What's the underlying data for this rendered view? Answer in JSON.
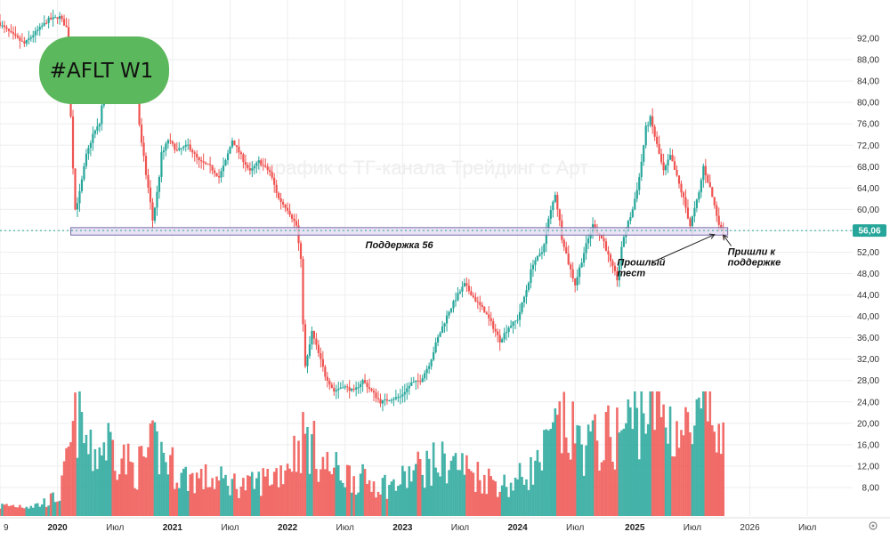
{
  "chart_data": {
    "type": "candlestick",
    "ticker_label": "#AFLT W1",
    "watermark": "Я график с ТГ-канала Трейдинг с Арт",
    "colors": {
      "up": "#26a69a",
      "down": "#ef5350",
      "ticker_badge": "#5cb85c",
      "support_zone_fill": "#e3d9f2",
      "support_zone_stroke": "#7b6ea8",
      "price_label_bg": "#26a69a",
      "grid": "#eeeeee"
    },
    "grid": true,
    "y_axis": {
      "position": "right",
      "ylim": [
        5.0,
        96.0
      ],
      "ticks": [
        8,
        12,
        16,
        20,
        24,
        28,
        32,
        36,
        40,
        44,
        48,
        52,
        56,
        60,
        64,
        68,
        72,
        76,
        80,
        84,
        88,
        92
      ],
      "tick_labels": [
        "8,00",
        "12,00",
        "16,00",
        "20,00",
        "24,00",
        "28,00",
        "32,00",
        "36,00",
        "40,00",
        "44,00",
        "48,00",
        "52,00",
        "56,00",
        "60,00",
        "64,00",
        "68,00",
        "72,00",
        "76,00",
        "80,00",
        "84,00",
        "88,00",
        "92,00"
      ]
    },
    "x_axis": {
      "xlim": [
        "2019-07-08",
        "2026-09-14"
      ],
      "ticks": [
        {
          "date": "2019-07-08",
          "label": "9",
          "bold": false
        },
        {
          "date": "2020-01-06",
          "label": "2020",
          "bold": true
        },
        {
          "date": "2020-07-06",
          "label": "Июл",
          "bold": false
        },
        {
          "date": "2021-01-04",
          "label": "2021",
          "bold": true
        },
        {
          "date": "2021-07-05",
          "label": "Июл",
          "bold": false
        },
        {
          "date": "2022-01-03",
          "label": "2022",
          "bold": true
        },
        {
          "date": "2022-07-04",
          "label": "Июл",
          "bold": false
        },
        {
          "date": "2023-01-02",
          "label": "2023",
          "bold": true
        },
        {
          "date": "2023-07-03",
          "label": "Июл",
          "bold": false
        },
        {
          "date": "2024-01-01",
          "label": "2024",
          "bold": true
        },
        {
          "date": "2024-07-01",
          "label": "Июл",
          "bold": false
        },
        {
          "date": "2025-01-06",
          "label": "2025",
          "bold": true
        },
        {
          "date": "2025-07-07",
          "label": "Июл",
          "bold": false
        },
        {
          "date": "2026-01-05",
          "label": "2026",
          "bold": false
        },
        {
          "date": "2026-07-06",
          "label": "Июл",
          "bold": false
        }
      ]
    },
    "last_price": {
      "value": 56.06,
      "label": "56,06"
    },
    "support_zone": {
      "from": 55.2,
      "to": 56.6,
      "start": "2020-02-17",
      "end": "2025-10-27",
      "label": "Поддержка 56"
    },
    "annotations": [
      {
        "id": "prev-test",
        "lines": [
          "Прошлый",
          "тест"
        ],
        "text_date": "2024-11-11",
        "text_price": 49.5,
        "arrow_to_date": "2025-09-15",
        "arrow_to_price": 55.3
      },
      {
        "id": "came-to-support",
        "lines": [
          "Пришли к",
          "поддержке"
        ],
        "text_date": "2025-10-27",
        "text_price": 51.5,
        "arrow_to_date": "2025-10-13",
        "arrow_to_price": 55.2
      }
    ],
    "price_keypoints": [
      [
        "2019-07-08",
        95.0
      ],
      [
        "2019-08-26",
        92.5
      ],
      [
        "2019-09-30",
        91.0
      ],
      [
        "2019-11-11",
        93.5
      ],
      [
        "2019-12-16",
        95.5
      ],
      [
        "2020-01-20",
        96.0
      ],
      [
        "2020-02-10",
        94.0
      ],
      [
        "2020-02-24",
        78.0
      ],
      [
        "2020-03-09",
        60.0
      ],
      [
        "2020-03-23",
        63.0
      ],
      [
        "2020-04-13",
        70.0
      ],
      [
        "2020-05-04",
        74.0
      ],
      [
        "2020-05-25",
        76.0
      ],
      [
        "2020-06-15",
        86.0
      ],
      [
        "2020-06-29",
        90.0
      ],
      [
        "2020-07-20",
        88.0
      ],
      [
        "2020-08-10",
        86.0
      ],
      [
        "2020-08-31",
        84.0
      ],
      [
        "2020-09-21",
        80.0
      ],
      [
        "2020-10-05",
        72.0
      ],
      [
        "2020-10-26",
        64.0
      ],
      [
        "2020-11-09",
        58.0
      ],
      [
        "2020-11-23",
        63.0
      ],
      [
        "2020-12-07",
        70.0
      ],
      [
        "2020-12-28",
        73.0
      ],
      [
        "2021-01-25",
        71.0
      ],
      [
        "2021-03-01",
        72.0
      ],
      [
        "2021-04-05",
        69.0
      ],
      [
        "2021-05-10",
        68.0
      ],
      [
        "2021-06-07",
        66.0
      ],
      [
        "2021-06-28",
        69.0
      ],
      [
        "2021-07-19",
        73.0
      ],
      [
        "2021-08-16",
        70.0
      ],
      [
        "2021-09-13",
        67.0
      ],
      [
        "2021-10-11",
        69.0
      ],
      [
        "2021-11-15",
        67.0
      ],
      [
        "2021-12-13",
        62.0
      ],
      [
        "2022-01-10",
        60.0
      ],
      [
        "2022-02-07",
        57.0
      ],
      [
        "2022-02-21",
        50.0
      ],
      [
        "2022-03-07",
        30.0
      ],
      [
        "2022-03-28",
        37.0
      ],
      [
        "2022-04-18",
        33.0
      ],
      [
        "2022-05-09",
        29.0
      ],
      [
        "2022-06-06",
        26.0
      ],
      [
        "2022-07-04",
        27.0
      ],
      [
        "2022-08-08",
        26.0
      ],
      [
        "2022-09-05",
        28.0
      ],
      [
        "2022-10-03",
        26.0
      ],
      [
        "2022-10-31",
        24.0
      ],
      [
        "2022-11-28",
        24.5
      ],
      [
        "2023-01-02",
        25.0
      ],
      [
        "2023-02-06",
        27.5
      ],
      [
        "2023-03-06",
        28.0
      ],
      [
        "2023-04-03",
        31.0
      ],
      [
        "2023-05-01",
        36.0
      ],
      [
        "2023-06-05",
        41.0
      ],
      [
        "2023-07-03",
        44.0
      ],
      [
        "2023-07-24",
        46.0
      ],
      [
        "2023-08-28",
        43.0
      ],
      [
        "2023-09-25",
        41.0
      ],
      [
        "2023-10-23",
        38.0
      ],
      [
        "2023-11-13",
        35.5
      ],
      [
        "2023-12-11",
        38.0
      ],
      [
        "2024-01-08",
        39.5
      ],
      [
        "2024-02-05",
        45.0
      ],
      [
        "2024-02-26",
        50.0
      ],
      [
        "2024-03-25",
        52.0
      ],
      [
        "2024-04-15",
        58.0
      ],
      [
        "2024-05-06",
        63.0
      ],
      [
        "2024-05-27",
        55.0
      ],
      [
        "2024-06-17",
        50.0
      ],
      [
        "2024-07-08",
        46.0
      ],
      [
        "2024-08-05",
        52.0
      ],
      [
        "2024-09-02",
        57.0
      ],
      [
        "2024-10-07",
        54.0
      ],
      [
        "2024-10-28",
        50.0
      ],
      [
        "2024-11-18",
        47.0
      ],
      [
        "2024-12-09",
        55.0
      ],
      [
        "2025-01-06",
        60.0
      ],
      [
        "2025-01-27",
        66.0
      ],
      [
        "2025-02-17",
        75.0
      ],
      [
        "2025-03-03",
        77.0
      ],
      [
        "2025-03-24",
        72.0
      ],
      [
        "2025-04-14",
        67.0
      ],
      [
        "2025-05-05",
        70.0
      ],
      [
        "2025-05-26",
        66.0
      ],
      [
        "2025-06-16",
        62.0
      ],
      [
        "2025-07-07",
        57.0
      ],
      [
        "2025-08-04",
        63.0
      ],
      [
        "2025-08-18",
        68.0
      ],
      [
        "2025-09-08",
        64.0
      ],
      [
        "2025-09-29",
        59.0
      ],
      [
        "2025-10-13",
        56.06
      ]
    ],
    "volume_keypoints": [
      [
        "2019-07-08",
        1.0
      ],
      [
        "2019-11-04",
        1.1
      ],
      [
        "2020-01-13",
        2.0
      ],
      [
        "2020-03-09",
        10.0
      ],
      [
        "2020-04-20",
        6.0
      ],
      [
        "2020-06-15",
        7.5
      ],
      [
        "2020-09-07",
        4.5
      ],
      [
        "2020-11-09",
        7.0
      ],
      [
        "2021-02-01",
        4.0
      ],
      [
        "2021-06-07",
        3.5
      ],
      [
        "2021-09-06",
        3.0
      ],
      [
        "2021-12-13",
        4.5
      ],
      [
        "2022-02-28",
        8.0
      ],
      [
        "2022-05-02",
        5.0
      ],
      [
        "2022-09-05",
        3.5
      ],
      [
        "2022-12-05",
        3.0
      ],
      [
        "2023-03-06",
        5.0
      ],
      [
        "2023-06-05",
        5.5
      ],
      [
        "2023-09-04",
        4.0
      ],
      [
        "2023-12-04",
        3.0
      ],
      [
        "2024-03-04",
        5.0
      ],
      [
        "2024-05-13",
        9.0
      ],
      [
        "2024-08-05",
        7.0
      ],
      [
        "2024-11-04",
        8.0
      ],
      [
        "2025-01-13",
        10.0
      ],
      [
        "2025-03-03",
        12.0
      ],
      [
        "2025-05-05",
        9.0
      ],
      [
        "2025-07-07",
        8.0
      ],
      [
        "2025-08-25",
        11.0
      ],
      [
        "2025-10-13",
        6.5
      ]
    ]
  }
}
